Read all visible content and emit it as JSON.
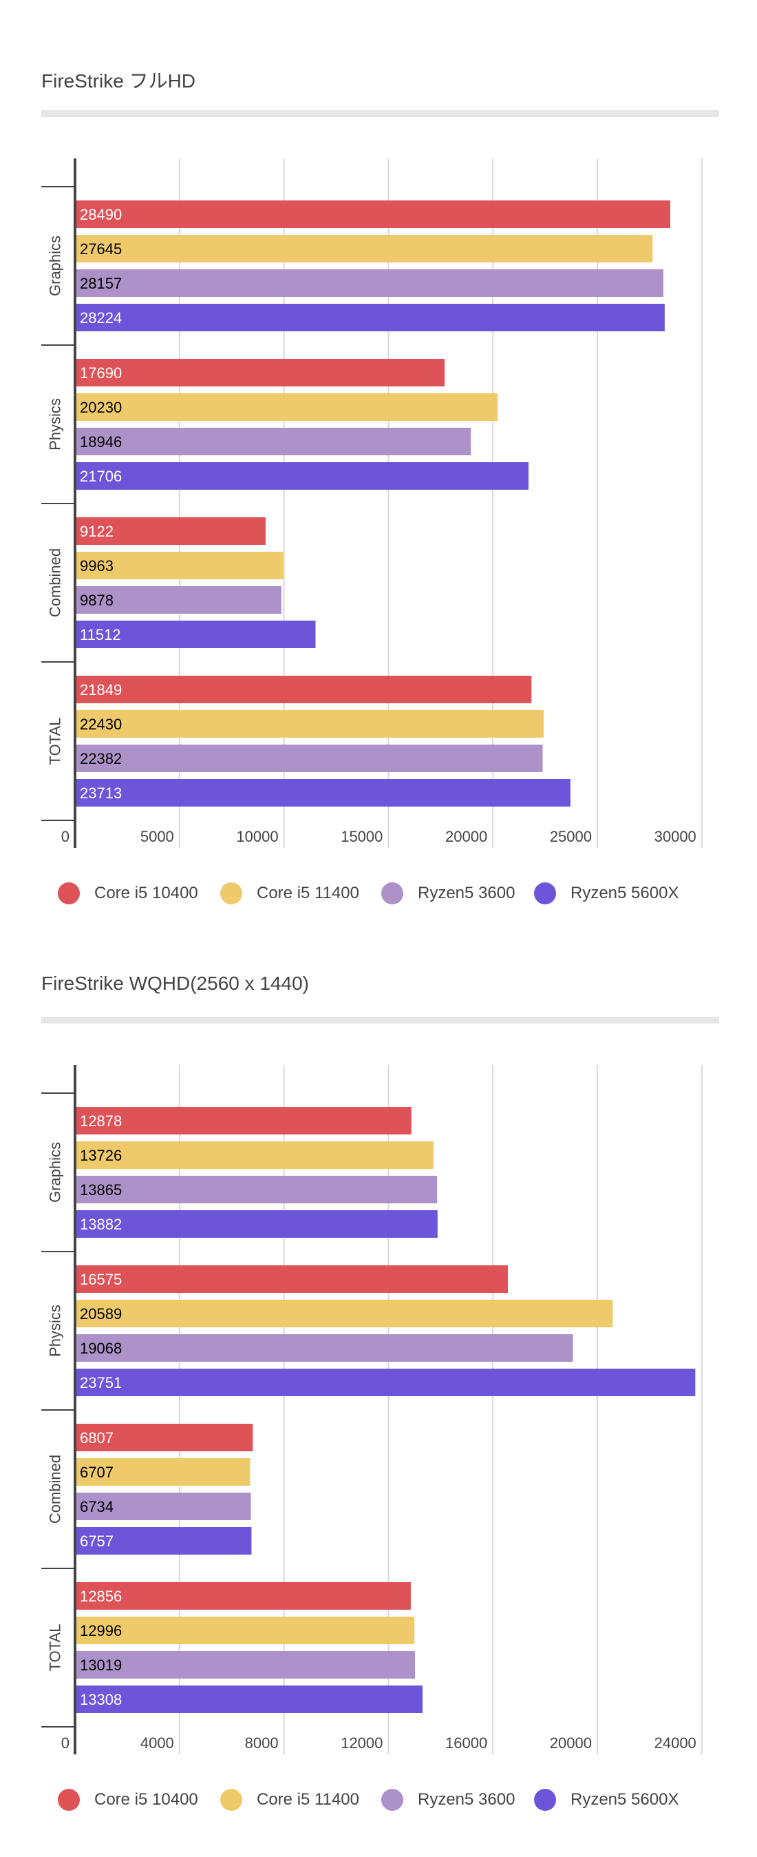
{
  "series_colors": {
    "Core i5 10400": "#DD5357",
    "Core i5 11400": "#EFCA6A",
    "Ryzen5 3600": "#AC92C8",
    "Ryzen5 5600X": "#6D55DA"
  },
  "label_colors": {
    "Core i5 10400": "#ffffff",
    "Core i5 11400": "#000000",
    "Ryzen5 3600": "#000000",
    "Ryzen5 5600X": "#ffffff"
  },
  "chart_data": [
    {
      "type": "bar",
      "orientation": "horizontal",
      "title": "FireStrike フルHD",
      "categories": [
        "Graphics",
        "Physics",
        "Combined",
        "TOTAL"
      ],
      "series": [
        {
          "name": "Core i5 10400",
          "values": [
            28490,
            17690,
            9122,
            21849
          ]
        },
        {
          "name": "Core i5 11400",
          "values": [
            27645,
            20230,
            9963,
            22430
          ]
        },
        {
          "name": "Ryzen5 3600",
          "values": [
            28157,
            18946,
            9878,
            22382
          ]
        },
        {
          "name": "Ryzen5 5600X",
          "values": [
            28224,
            21706,
            11512,
            23713
          ]
        }
      ],
      "xlim": [
        0,
        30000
      ],
      "xticks": [
        0,
        5000,
        10000,
        15000,
        20000,
        25000,
        30000
      ],
      "xtick_labels": [
        "0",
        "5000",
        "10000",
        "15000",
        "20000",
        "25000",
        "30000"
      ],
      "xlabel": "",
      "ylabel": "",
      "grid": true,
      "data_labels": "inside-start",
      "legend": "bottom"
    },
    {
      "type": "bar",
      "orientation": "horizontal",
      "title": "FireStrike WQHD(2560 x 1440)",
      "categories": [
        "Graphics",
        "Physics",
        "Combined",
        "TOTAL"
      ],
      "series": [
        {
          "name": "Core i5 10400",
          "values": [
            12878,
            16575,
            6807,
            12856
          ]
        },
        {
          "name": "Core i5 11400",
          "values": [
            13726,
            20589,
            6707,
            12996
          ]
        },
        {
          "name": "Ryzen5 3600",
          "values": [
            13865,
            19068,
            6734,
            13019
          ]
        },
        {
          "name": "Ryzen5 5600X",
          "values": [
            13882,
            23751,
            6757,
            13308
          ]
        }
      ],
      "xlim": [
        0,
        24000
      ],
      "xticks": [
        0,
        4000,
        8000,
        12000,
        16000,
        20000,
        24000
      ],
      "xtick_labels": [
        "0",
        "4000",
        "8000",
        "12000",
        "16000",
        "20000",
        "24000"
      ],
      "xlabel": "",
      "ylabel": "",
      "grid": true,
      "data_labels": "inside-start",
      "legend": "bottom"
    }
  ]
}
